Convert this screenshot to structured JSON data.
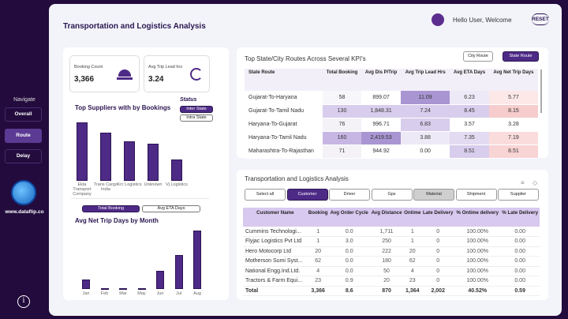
{
  "sidebar": {
    "navigate": "Navigate",
    "items": [
      {
        "label": "Overall",
        "active": false
      },
      {
        "label": "Route",
        "active": true
      },
      {
        "label": "Delay",
        "active": false
      }
    ],
    "site": "www.dataflip.co",
    "info": "i"
  },
  "header": {
    "title": "Transportation and Logistics Analysis",
    "greeting": "Hello User, Welcome",
    "reset": "RESET"
  },
  "kpis": [
    {
      "label": "Booking Count",
      "value": "3,366",
      "icon": "bell-icon"
    },
    {
      "label": "Avg Trip Lead hrs",
      "value": "3.24",
      "icon": "clock-icon"
    }
  ],
  "suppliers": {
    "title": "Top Suppliers with by Bookings",
    "status_label": "Status",
    "status_options": [
      "Inter State",
      "Intra State"
    ],
    "selected": "Inter State",
    "chart_data": {
      "type": "bar",
      "categories": [
        "Ekta Transport Company",
        "Trans Cargo India",
        "Krc Logistics",
        "Unknown",
        "Vj Logistics"
      ],
      "values": [
        222,
        182,
        150,
        141,
        81
      ],
      "color": "#4e2a87"
    }
  },
  "month": {
    "toggles": [
      "Total Booking",
      "Avg ETA Days"
    ],
    "selected": "Total Booking",
    "title": "Avg Net Trip Days by Month",
    "chart_data": {
      "type": "bar",
      "categories": [
        "Jan",
        "Feb",
        "Mar",
        "May",
        "Jun",
        "Jul",
        "Aug"
      ],
      "values": [
        35,
        3,
        2,
        2,
        68,
        130,
        222
      ],
      "color": "#4e2a87"
    }
  },
  "routes": {
    "title": "Top State/City Routes Across Several KPI's",
    "buttons": [
      "City Route",
      "State Route"
    ],
    "selected": "State Route",
    "columns": [
      "State Route",
      "Total Booking",
      "Avg Dis P/Trip",
      "Avg Trip Lead Hrs",
      "Avg ETA Days",
      "Avg Net Trip Days"
    ],
    "rows": [
      [
        "Gujarat-To-Haryana",
        "58",
        "899.07",
        "11.09",
        "6.23",
        "5.77"
      ],
      [
        "Gujarat-To-Tamil Nadu",
        "130",
        "1,848.31",
        "7.24",
        "8.45",
        "8.15"
      ],
      [
        "Haryana-To-Gujarat",
        "76",
        "996.71",
        "6.83",
        "3.57",
        "3.28"
      ],
      [
        "Haryana-To-Tamil Nadu",
        "160",
        "2,419.53",
        "3.88",
        "7.35",
        "7.19"
      ],
      [
        "Maharashtra-To-Rajasthan",
        "71",
        "944.92",
        "0.00",
        "8.51",
        "8.51"
      ]
    ]
  },
  "analysis": {
    "title": "Transportation and Logistics Analysis",
    "filters": [
      "Select all",
      "Customer",
      "Driver",
      "Gps",
      "Material",
      "Shipment",
      "Supplier"
    ],
    "selected": "Customer",
    "columns": [
      "Customer Name",
      "Booking",
      "Avg Order Cycle",
      "Avg Distance",
      "Ontime",
      "Late Delivery",
      "% Ontime delivery",
      "% Late Delivery"
    ],
    "rows": [
      [
        "Cummins Technologi...",
        "1",
        "0.0",
        "1,711",
        "1",
        "0",
        "100.00%",
        "0.00"
      ],
      [
        "Flyjac Logistics Pvt Ltd",
        "1",
        "3.0",
        "250",
        "1",
        "0",
        "100.00%",
        "0.00"
      ],
      [
        "Hero Motocorp Ltd",
        "20",
        "0.0",
        "222",
        "20",
        "0",
        "100.00%",
        "0.00"
      ],
      [
        "Motherson Sumi Syst...",
        "62",
        "0.0",
        "180",
        "62",
        "0",
        "100.00%",
        "0.00"
      ],
      [
        "National Engg.Ind.Ltd.",
        "4",
        "0.0",
        "50",
        "4",
        "0",
        "100.00%",
        "0.00"
      ],
      [
        "Tractors & Farm Equi...",
        "23",
        "0.9",
        "20",
        "23",
        "0",
        "100.00%",
        "0.00"
      ]
    ],
    "total": [
      "Total",
      "3,366",
      "8.6",
      "870",
      "1,364",
      "2,002",
      "40.52%",
      "0.59"
    ]
  }
}
